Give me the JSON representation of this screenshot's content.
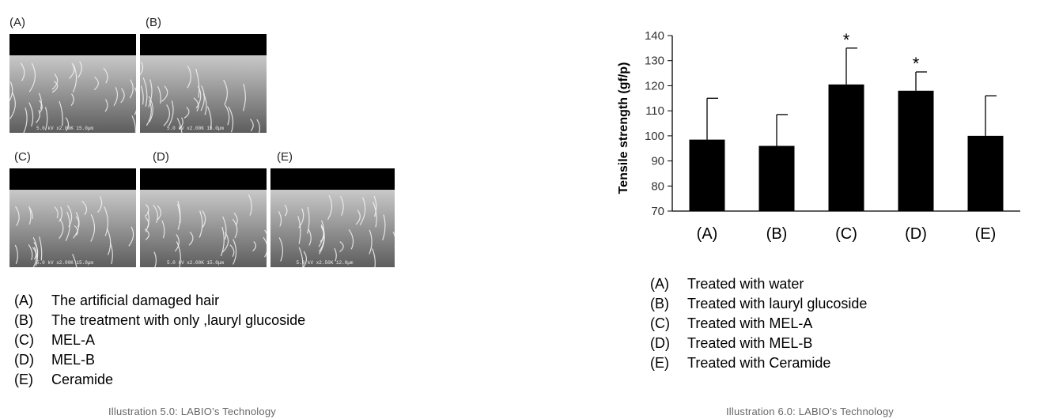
{
  "left_panel": {
    "image_labels": [
      "(A)",
      "(B)",
      "(C)",
      "(D)",
      "(E)"
    ],
    "scale_texts": [
      "5.0 kV x2.00K 15.0µm",
      "5.0 kV x2.00K 15.0µm",
      "5.0 kV x2.00K 15.0µm",
      "5.0 kV x2.00K 15.0µm",
      "5.0 kV x2.50K 12.0µm"
    ],
    "legend": [
      {
        "tag": "(A)",
        "text": "The artificial damaged hair"
      },
      {
        "tag": "(B)",
        "text": "The treatment with only ,lauryl glucoside"
      },
      {
        "tag": "(C)",
        "text": "MEL-A"
      },
      {
        "tag": "(D)",
        "text": "MEL-B"
      },
      {
        "tag": "(E)",
        "text": "Ceramide"
      }
    ],
    "caption": "Illustration 5.0: LABIO’s Technology"
  },
  "right_panel": {
    "legend": [
      {
        "tag": "(A)",
        "text": "Treated with water"
      },
      {
        "tag": "(B)",
        "text": "Treated with lauryl glucoside"
      },
      {
        "tag": "(C)",
        "text": "Treated with MEL-A"
      },
      {
        "tag": "(D)",
        "text": "Treated with MEL-B"
      },
      {
        "tag": "(E)",
        "text": "Treated with Ceramide"
      }
    ],
    "caption": "Illustration 6.0: LABIO’s Technology"
  },
  "chart_data": {
    "type": "bar",
    "categories": [
      "(A)",
      "(B)",
      "(C)",
      "(D)",
      "(E)"
    ],
    "values": [
      98.5,
      96,
      120.5,
      118,
      100
    ],
    "error_upper": [
      115,
      108.5,
      135,
      125.5,
      116
    ],
    "significance": [
      "",
      "",
      "*",
      "*",
      ""
    ],
    "ylabel": "Tensile strength (gf/p)",
    "xlabel": "",
    "ylim": [
      70,
      140
    ],
    "yticks": [
      70,
      80,
      90,
      100,
      110,
      120,
      130,
      140
    ],
    "bar_color": "#000000",
    "grid": false
  }
}
